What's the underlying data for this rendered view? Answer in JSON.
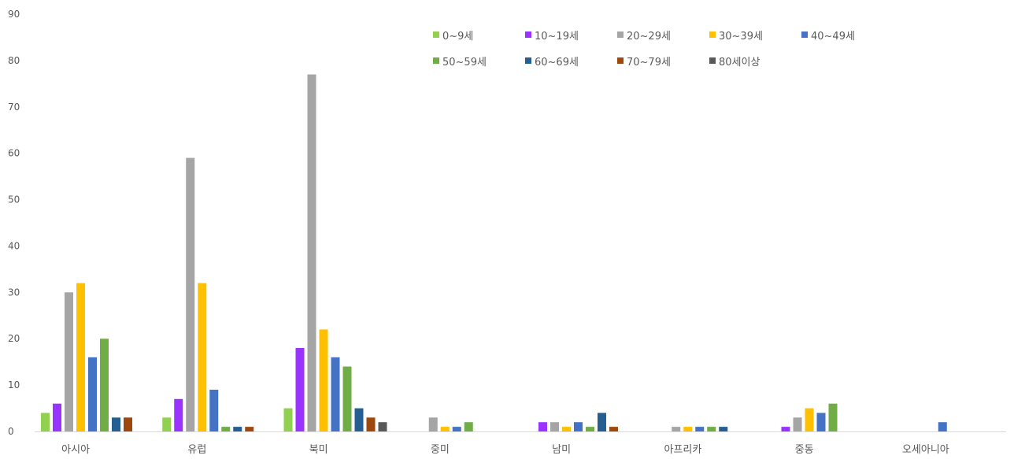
{
  "chart_data": {
    "type": "bar",
    "title": "",
    "xlabel": "",
    "ylabel": "",
    "ylim": [
      0,
      90
    ],
    "yticks": [
      0,
      10,
      20,
      30,
      40,
      50,
      60,
      70,
      80,
      90
    ],
    "grid": false,
    "legend_position": "top-right",
    "categories": [
      "아시아",
      "유럽",
      "북미",
      "중미",
      "남미",
      "아프리카",
      "중동",
      "오세아니아"
    ],
    "series": [
      {
        "name": "0~9세",
        "color": "#92D050",
        "values": [
          4,
          3,
          5,
          0,
          0,
          0,
          0,
          0
        ]
      },
      {
        "name": "10~19세",
        "color": "#9933FF",
        "values": [
          6,
          7,
          18,
          0,
          2,
          0,
          1,
          0
        ]
      },
      {
        "name": "20~29세",
        "color": "#A5A5A5",
        "values": [
          30,
          59,
          77,
          3,
          2,
          1,
          3,
          0
        ]
      },
      {
        "name": "30~39세",
        "color": "#FFC000",
        "values": [
          32,
          32,
          22,
          1,
          1,
          1,
          5,
          0
        ]
      },
      {
        "name": "40~49세",
        "color": "#4472C4",
        "values": [
          16,
          9,
          16,
          1,
          2,
          1,
          4,
          2
        ]
      },
      {
        "name": "50~59세",
        "color": "#70AD47",
        "values": [
          20,
          1,
          14,
          2,
          1,
          1,
          6,
          0
        ]
      },
      {
        "name": "60~69세",
        "color": "#255E91",
        "values": [
          3,
          1,
          5,
          0,
          4,
          1,
          0,
          0
        ]
      },
      {
        "name": "70~79세",
        "color": "#9E480E",
        "values": [
          3,
          1,
          3,
          0,
          1,
          0,
          0,
          0
        ]
      },
      {
        "name": "80세이상",
        "color": "#595959",
        "values": [
          0,
          0,
          2,
          0,
          0,
          0,
          0,
          0
        ]
      }
    ]
  }
}
